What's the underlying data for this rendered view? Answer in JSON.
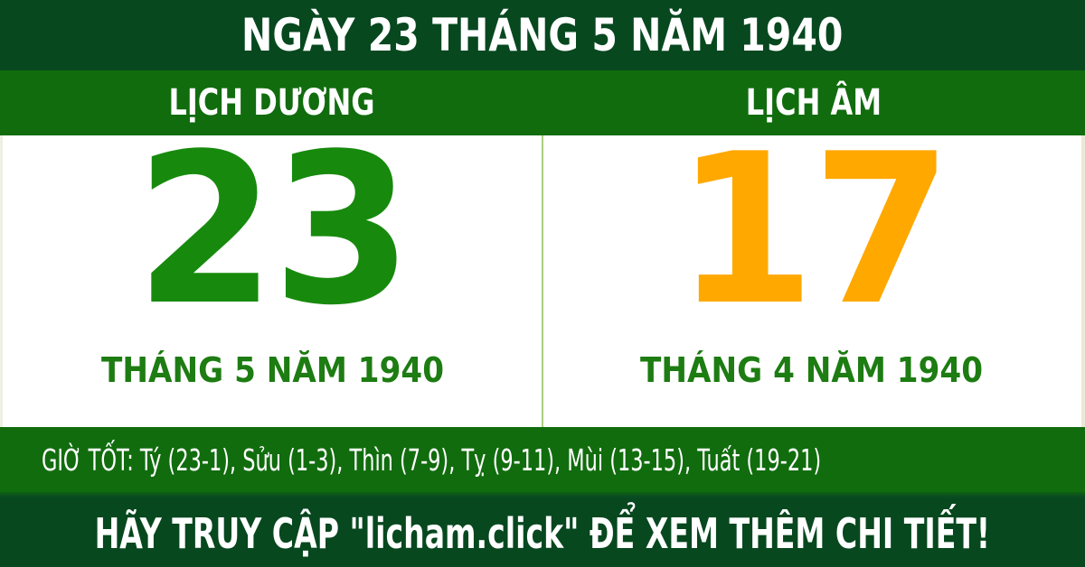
{
  "header": {
    "title": "NGÀY 23 THÁNG 5 NĂM 1940"
  },
  "solar": {
    "header": "LỊCH DƯƠNG",
    "day": "23",
    "month_year": "THÁNG 5 NĂM 1940"
  },
  "lunar": {
    "header": "LỊCH ÂM",
    "day": "17",
    "month_year": "THÁNG 4 NĂM 1940"
  },
  "good_hours": {
    "text": "GIỜ TỐT: Tý (23-1), Sửu (1-3), Thìn (7-9), Tỵ (9-11), Mùi (13-15), Tuất (19-21)"
  },
  "footer": {
    "cta": "HÃY TRUY CẬP \"licham.click\" ĐỂ XEM THÊM CHI TIẾT!"
  },
  "colors": {
    "dark_green": "#07481f",
    "green": "#116c0e",
    "solar_day_green": "#178a0d",
    "month_label_green": "#1d7c12",
    "lunar_day_orange": "#ffa800",
    "divider_light_green": "#a9d07e",
    "text_white": "#ffffff",
    "panel_white": "#ffffff"
  }
}
